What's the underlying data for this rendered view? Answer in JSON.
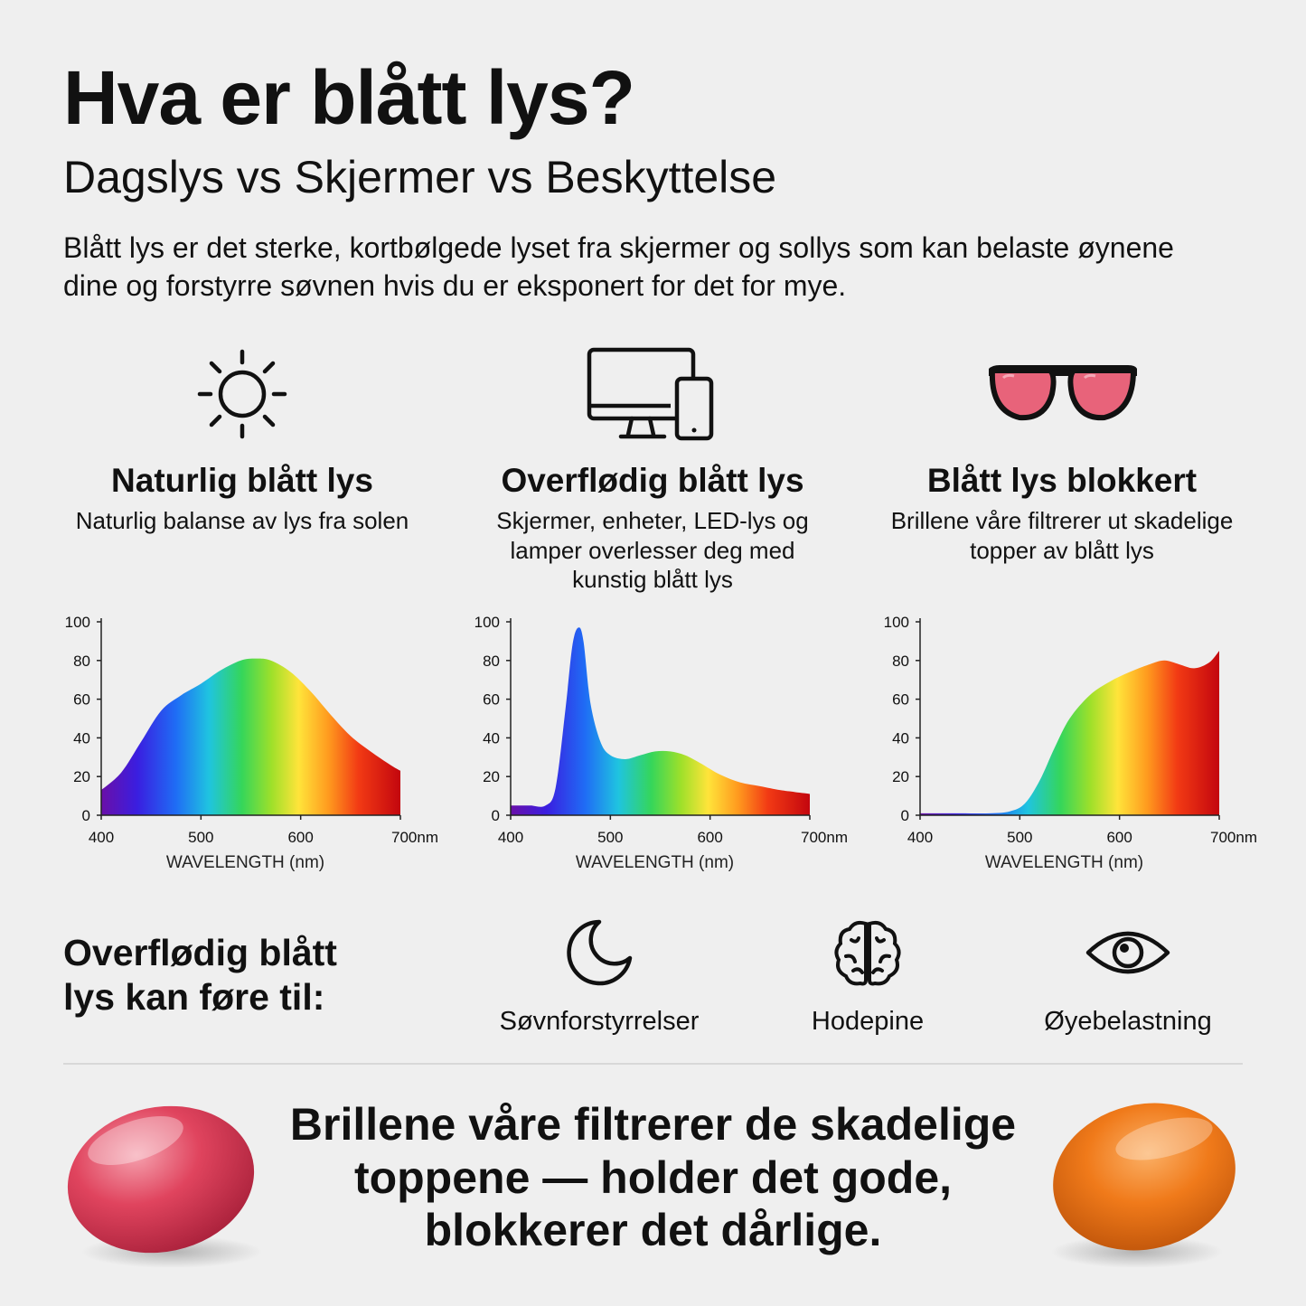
{
  "header": {
    "title": "Hva er blått lys?",
    "subtitle": "Dagslys vs Skjermer vs Beskyttelse",
    "intro": "Blått lys er det sterke, kortbølgede lyset fra skjermer og sollys som kan belaste øynene dine og forstyrre søvnen hvis du er eksponert for det for mye."
  },
  "columns": [
    {
      "icon": "sun-icon",
      "heading": "Naturlig blått lys",
      "text": "Naturlig balanse av lys fra solen"
    },
    {
      "icon": "devices-icon",
      "heading": "Overflødig blått lys",
      "text": "Skjermer, enheter, LED-lys og lamper overlesser deg med kunstig blått lys"
    },
    {
      "icon": "glasses-icon",
      "heading": "Blått lys blokkert",
      "text": "Brillene våre filtrerer ut skadelige topper av blått lys"
    }
  ],
  "effects": {
    "heading": "Overflødig blått lys kan føre til:",
    "items": [
      {
        "icon": "moon-icon",
        "label": "Søvnforstyrrelser"
      },
      {
        "icon": "brain-icon",
        "label": "Hodepine"
      },
      {
        "icon": "eye-icon",
        "label": "Øyebelastning"
      }
    ]
  },
  "closing": "Brillene våre filtrerer de skadelige toppene — holder det gode, blokkerer det dårlige.",
  "colors": {
    "lens_red": "#e0445e",
    "lens_orange": "#f07a1a",
    "glasses_tint": "#e8637a"
  },
  "chart_data": [
    {
      "type": "area",
      "xlabel": "WAVELENGTH (nm)",
      "xlim": [
        400,
        700
      ],
      "ylim": [
        0,
        100
      ],
      "x_ticks": [
        "400",
        "500",
        "600",
        "700nm"
      ],
      "y_ticks": [
        "0",
        "20",
        "40",
        "60",
        "80",
        "100"
      ],
      "x": [
        400,
        420,
        440,
        460,
        480,
        500,
        520,
        540,
        555,
        570,
        590,
        610,
        630,
        650,
        670,
        690,
        700
      ],
      "y": [
        13,
        22,
        38,
        54,
        62,
        68,
        75,
        80,
        81,
        80,
        74,
        64,
        52,
        41,
        33,
        26,
        23
      ]
    },
    {
      "type": "area",
      "xlabel": "WAVELENGTH (nm)",
      "xlim": [
        400,
        700
      ],
      "ylim": [
        0,
        100
      ],
      "x_ticks": [
        "400",
        "500",
        "600",
        "700nm"
      ],
      "y_ticks": [
        "0",
        "20",
        "40",
        "60",
        "80",
        "100"
      ],
      "x": [
        400,
        410,
        420,
        435,
        445,
        455,
        462,
        468,
        473,
        480,
        490,
        500,
        515,
        530,
        545,
        560,
        575,
        590,
        610,
        630,
        650,
        670,
        685,
        700
      ],
      "y": [
        5,
        5,
        5,
        5,
        14,
        55,
        88,
        97,
        90,
        58,
        38,
        31,
        29,
        31,
        33,
        33,
        31,
        27,
        21,
        17,
        15,
        13,
        12,
        11
      ]
    },
    {
      "type": "area",
      "xlabel": "WAVELENGTH (nm)",
      "xlim": [
        400,
        700
      ],
      "ylim": [
        0,
        100
      ],
      "x_ticks": [
        "400",
        "500",
        "600",
        "700nm"
      ],
      "y_ticks": [
        "0",
        "20",
        "40",
        "60",
        "80",
        "100"
      ],
      "x": [
        400,
        440,
        470,
        490,
        505,
        520,
        535,
        550,
        570,
        590,
        610,
        630,
        645,
        660,
        675,
        690,
        700
      ],
      "y": [
        1,
        1,
        1,
        2,
        6,
        18,
        35,
        50,
        62,
        69,
        74,
        78,
        80,
        78,
        76,
        79,
        85
      ]
    }
  ]
}
